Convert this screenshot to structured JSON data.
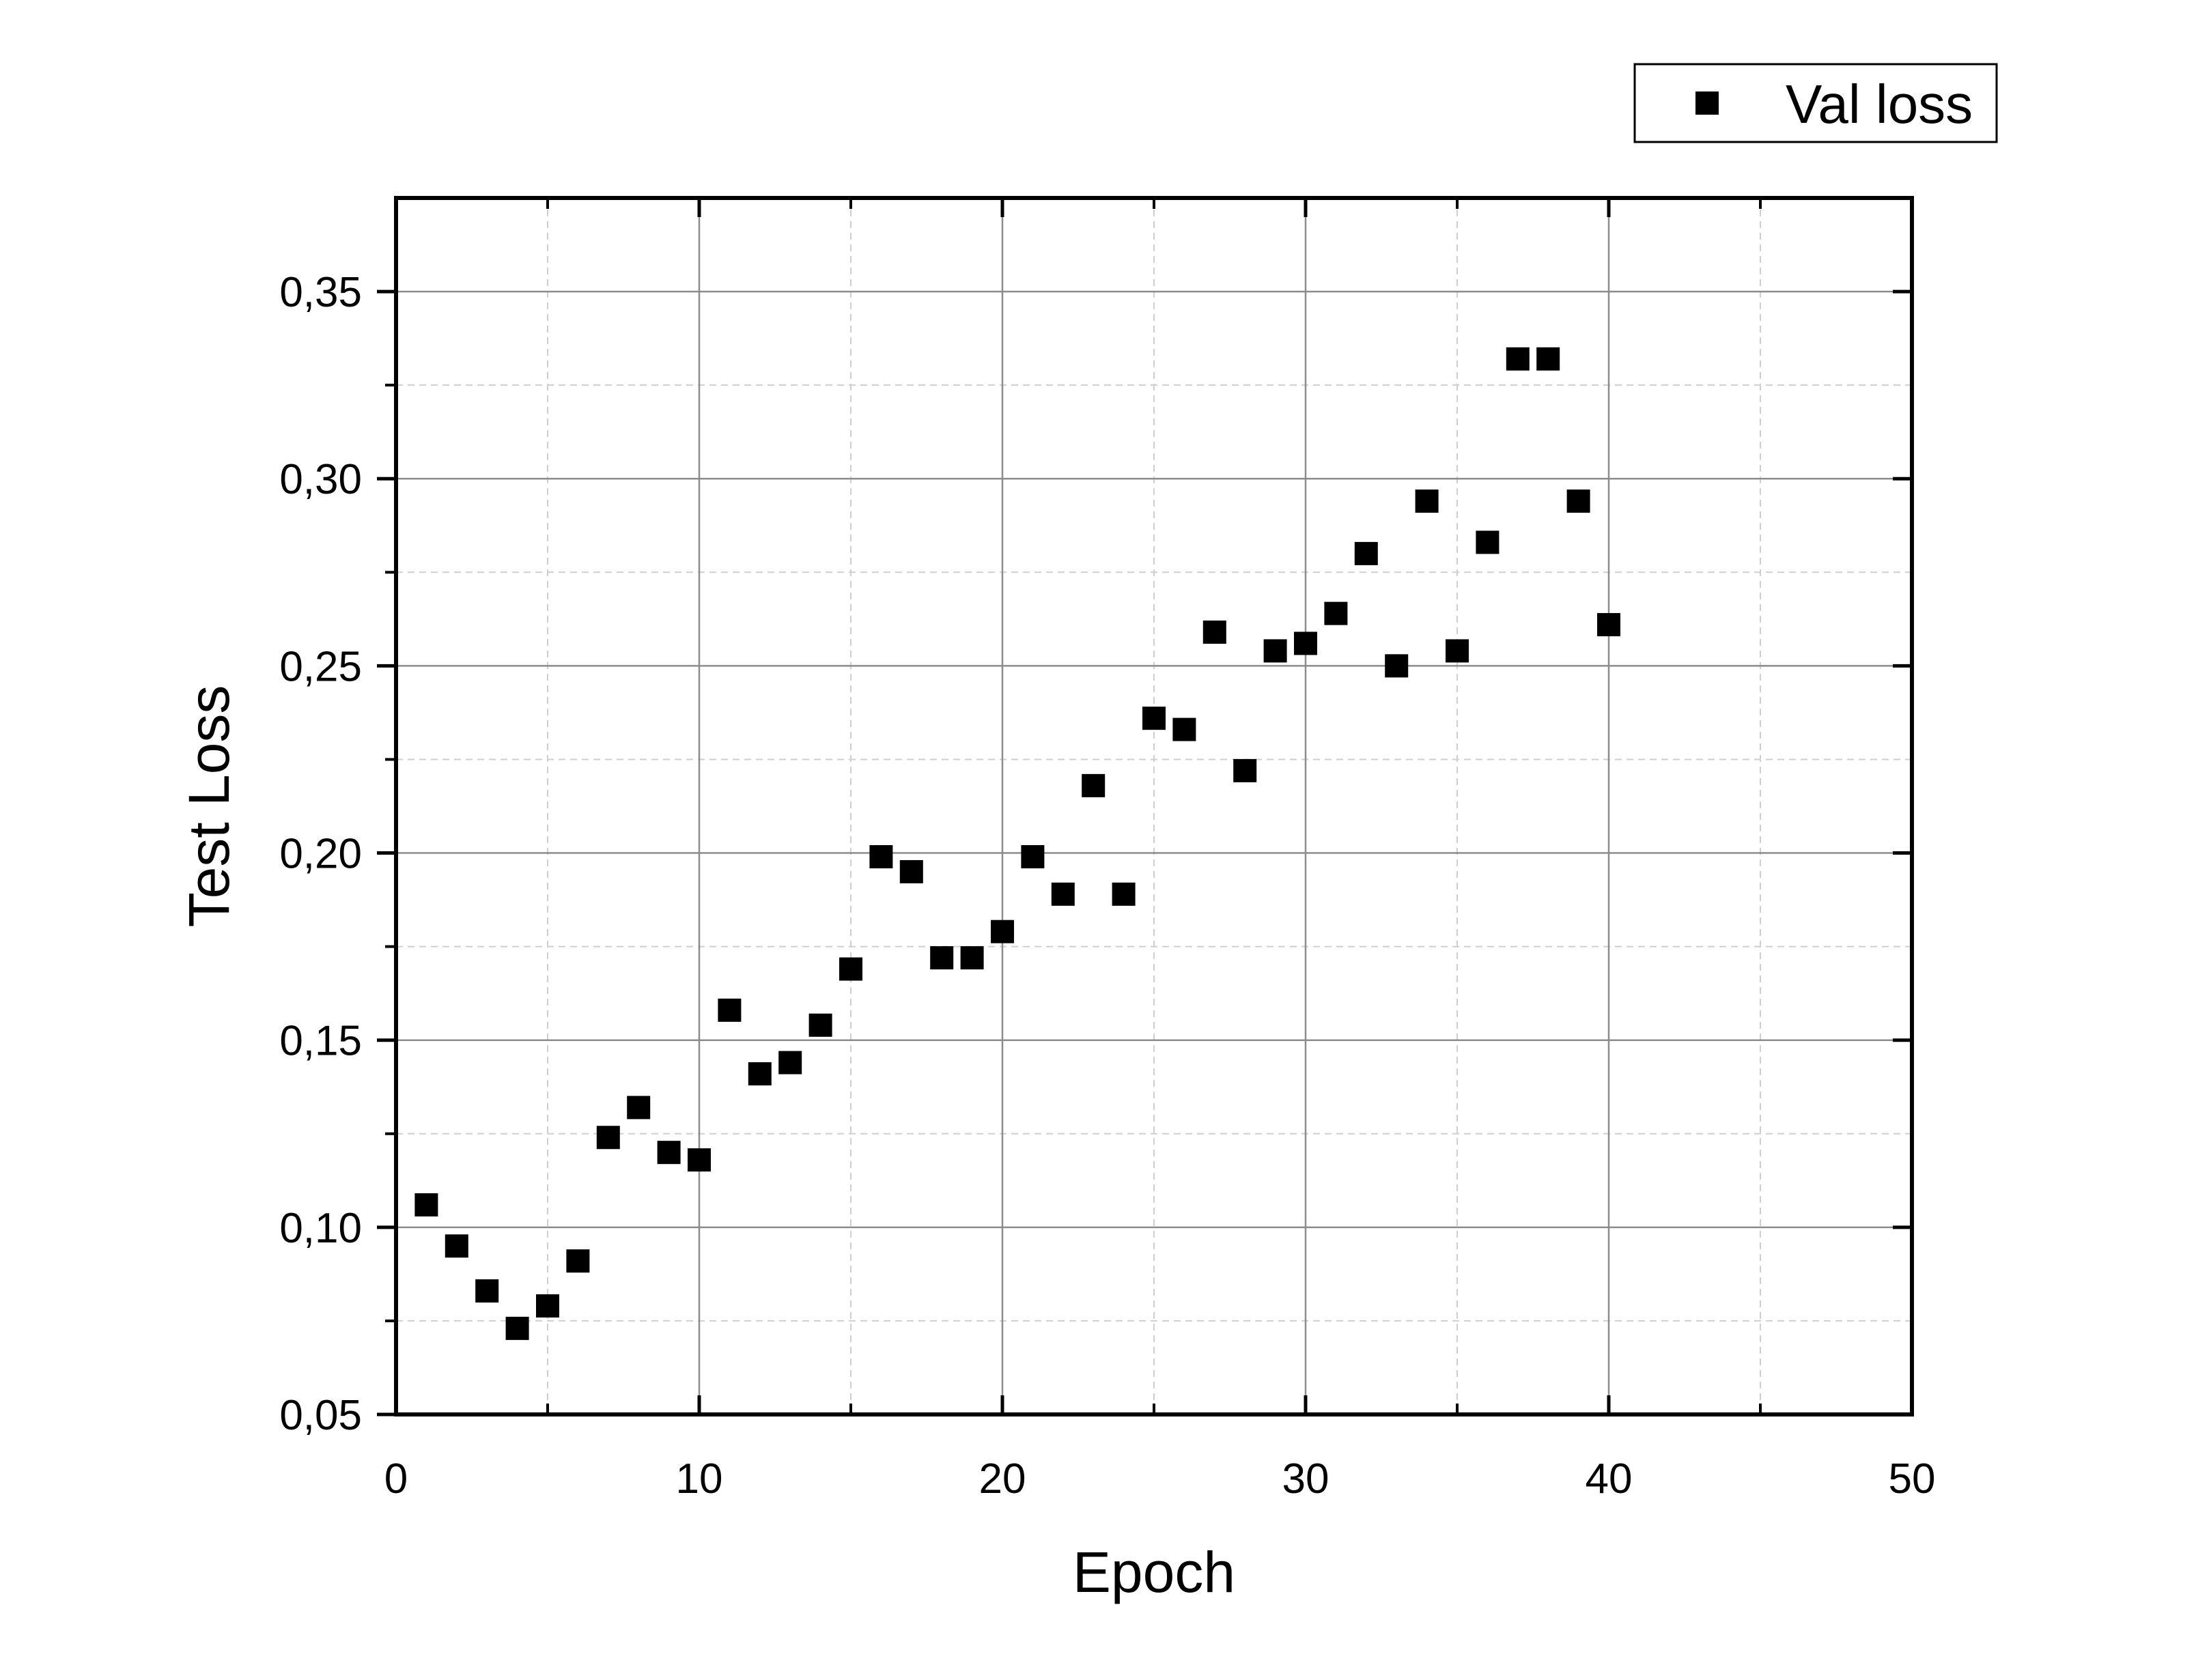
{
  "chart_data": {
    "type": "scatter",
    "title": "",
    "xlabel": "Epoch",
    "ylabel": "Test Loss",
    "xlim": [
      0,
      50
    ],
    "ylim": [
      0.05,
      0.375
    ],
    "x_ticks": [
      0,
      10,
      20,
      30,
      40,
      50
    ],
    "x_tick_labels": [
      "0",
      "10",
      "20",
      "30",
      "40",
      "50"
    ],
    "y_ticks": [
      0.05,
      0.1,
      0.15,
      0.2,
      0.25,
      0.3,
      0.35
    ],
    "y_tick_labels": [
      "0,05",
      "0,10",
      "0,15",
      "0,20",
      "0,25",
      "0,30",
      "0,35"
    ],
    "grid": true,
    "legend_position": "top-right",
    "marker": "square",
    "marker_color": "#000000",
    "series": [
      {
        "name": "Val loss",
        "x": [
          1,
          2,
          3,
          4,
          5,
          6,
          7,
          8,
          9,
          10,
          11,
          12,
          13,
          14,
          15,
          16,
          17,
          18,
          19,
          20,
          21,
          22,
          23,
          24,
          25,
          26,
          27,
          28,
          29,
          30,
          31,
          32,
          33,
          34,
          35,
          36,
          37,
          38,
          39,
          40
        ],
        "y": [
          0.106,
          0.095,
          0.083,
          0.073,
          0.079,
          0.091,
          0.124,
          0.132,
          0.12,
          0.118,
          0.158,
          0.141,
          0.144,
          0.154,
          0.169,
          0.199,
          0.195,
          0.172,
          0.172,
          0.179,
          0.199,
          0.189,
          0.218,
          0.189,
          0.236,
          0.233,
          0.259,
          0.222,
          0.254,
          0.256,
          0.264,
          0.28,
          0.25,
          0.294,
          0.254,
          0.283,
          0.332,
          0.332,
          0.294,
          0.261
        ]
      }
    ]
  }
}
